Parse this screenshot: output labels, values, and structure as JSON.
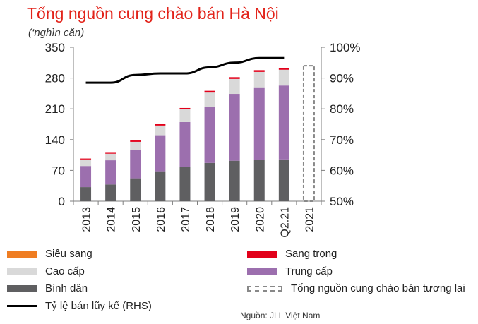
{
  "title": "Tổng nguồn cung chào bán Hà Nội",
  "unit": "(‘nghìn căn)",
  "source": "Nguồn: JLL Việt Nam",
  "colors": {
    "sieu_sang": "#ef7d22",
    "sang_trong": "#e2001a",
    "cao_cap": "#d9d9d9",
    "trung_cap": "#9c6fae",
    "binh_dan": "#5f5f61",
    "ty_le": "#000000",
    "tuong_lai": "#888888"
  },
  "legend": [
    {
      "key": "sieu_sang",
      "label": "Siêu sang",
      "kind": "box"
    },
    {
      "key": "sang_trong",
      "label": "Sang trọng",
      "kind": "box"
    },
    {
      "key": "cao_cap",
      "label": "Cao cấp",
      "kind": "box"
    },
    {
      "key": "trung_cap",
      "label": "Trung cấp",
      "kind": "box"
    },
    {
      "key": "binh_dan",
      "label": "Bình dân",
      "kind": "box"
    },
    {
      "key": "tuong_lai",
      "label": "Tổng nguồn cung chào bán tương lai",
      "kind": "dash"
    },
    {
      "key": "ty_le",
      "label": "Tỷ lệ bán lũy kế (RHS)",
      "kind": "line"
    }
  ],
  "chart_data": {
    "type": "bar",
    "stacked": true,
    "categories": [
      "2013",
      "2014",
      "2015",
      "2016",
      "2017",
      "2018",
      "2019",
      "2020",
      "Q2.21",
      "2021"
    ],
    "y_left": {
      "min": 0,
      "max": 350,
      "ticks": [
        0,
        70,
        140,
        210,
        280,
        350
      ],
      "tick_labels": [
        "0",
        "70",
        "140",
        "210",
        "280",
        "350"
      ]
    },
    "y_right": {
      "min": 50,
      "max": 100,
      "ticks": [
        50,
        60,
        70,
        80,
        90,
        100
      ],
      "tick_labels": [
        "50%",
        "60%",
        "70%",
        "80%",
        "90%",
        "100%"
      ]
    },
    "series": [
      {
        "name": "Bình dân",
        "key": "binh_dan",
        "values": [
          32,
          38,
          52,
          68,
          78,
          87,
          92,
          94,
          95,
          null
        ]
      },
      {
        "name": "Trung cấp",
        "key": "trung_cap",
        "values": [
          48,
          55,
          65,
          82,
          102,
          127,
          152,
          165,
          168,
          null
        ]
      },
      {
        "name": "Cao cấp",
        "key": "cao_cap",
        "values": [
          15,
          15,
          18,
          22,
          29,
          33,
          34,
          35,
          36,
          null
        ]
      },
      {
        "name": "Sang trọng",
        "key": "sang_trong",
        "values": [
          2,
          2,
          3,
          3,
          3,
          4,
          4,
          4,
          4,
          null
        ]
      },
      {
        "name": "Siêu sang",
        "key": "sieu_sang",
        "values": [
          0,
          0,
          0,
          0,
          0,
          0,
          0,
          0,
          0,
          null
        ]
      }
    ],
    "future_total": {
      "name": "Tổng nguồn cung chào bán tương lai",
      "category": "2021",
      "value": 308
    },
    "line": {
      "name": "Tỷ lệ bán lũy kế (RHS)",
      "axis": "right",
      "values": [
        88.5,
        88.5,
        91,
        91.5,
        91.5,
        93.5,
        95,
        96.5,
        96.5,
        null
      ]
    }
  }
}
